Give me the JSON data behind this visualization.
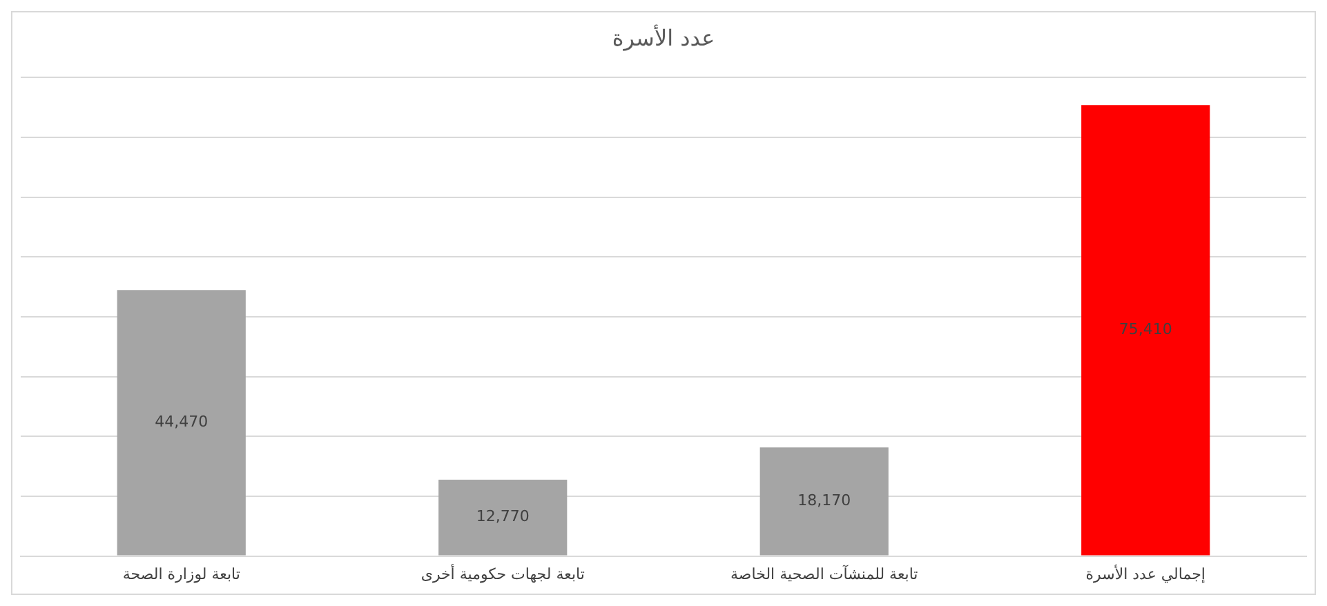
{
  "chart_data": {
    "type": "bar",
    "title": "عدد الأسرة",
    "categories": [
      "تابعة لوزارة الصحة",
      "تابعة لجهات حكومية أخرى",
      "تابعة للمنشآت الصحية الخاصة",
      "إجمالي عدد الأسرة"
    ],
    "values": [
      44470,
      12770,
      18170,
      75410
    ],
    "colors": [
      "#a5a5a5",
      "#a5a5a5",
      "#a5a5a5",
      "#ff0000"
    ],
    "value_labels": [
      "44,470",
      "12,770",
      "18,170",
      "75,410"
    ],
    "ylim": [
      0,
      80000
    ],
    "yticks": [
      {
        "value": 0,
        "label": null
      },
      {
        "value": 10000,
        "label": null
      },
      {
        "value": 20000,
        "label": null
      },
      {
        "value": 30000,
        "label": null
      },
      {
        "value": 40000,
        "label": null
      },
      {
        "value": 50000,
        "label": null
      },
      {
        "value": 60000,
        "label": null
      },
      {
        "value": 70000,
        "label": null
      },
      {
        "value": 80000,
        "label": null
      }
    ],
    "tick_labels": "x",
    "grid": "y",
    "legend": false
  }
}
